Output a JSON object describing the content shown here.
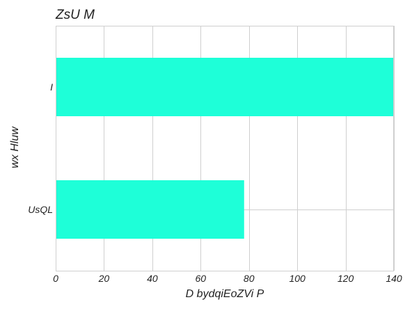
{
  "chart_data": {
    "type": "bar",
    "orientation": "horizontal",
    "title": "ZsU M",
    "xlabel": "D bydqiEoZVi P",
    "ylabel": "wx Hluw",
    "categories": [
      "I",
      "UsQL"
    ],
    "values": [
      140,
      78
    ],
    "xlim": [
      0,
      140
    ],
    "xticks": [
      0,
      20,
      40,
      60,
      80,
      100,
      120,
      140
    ],
    "grid": true,
    "bar_color": "#1effd8"
  }
}
